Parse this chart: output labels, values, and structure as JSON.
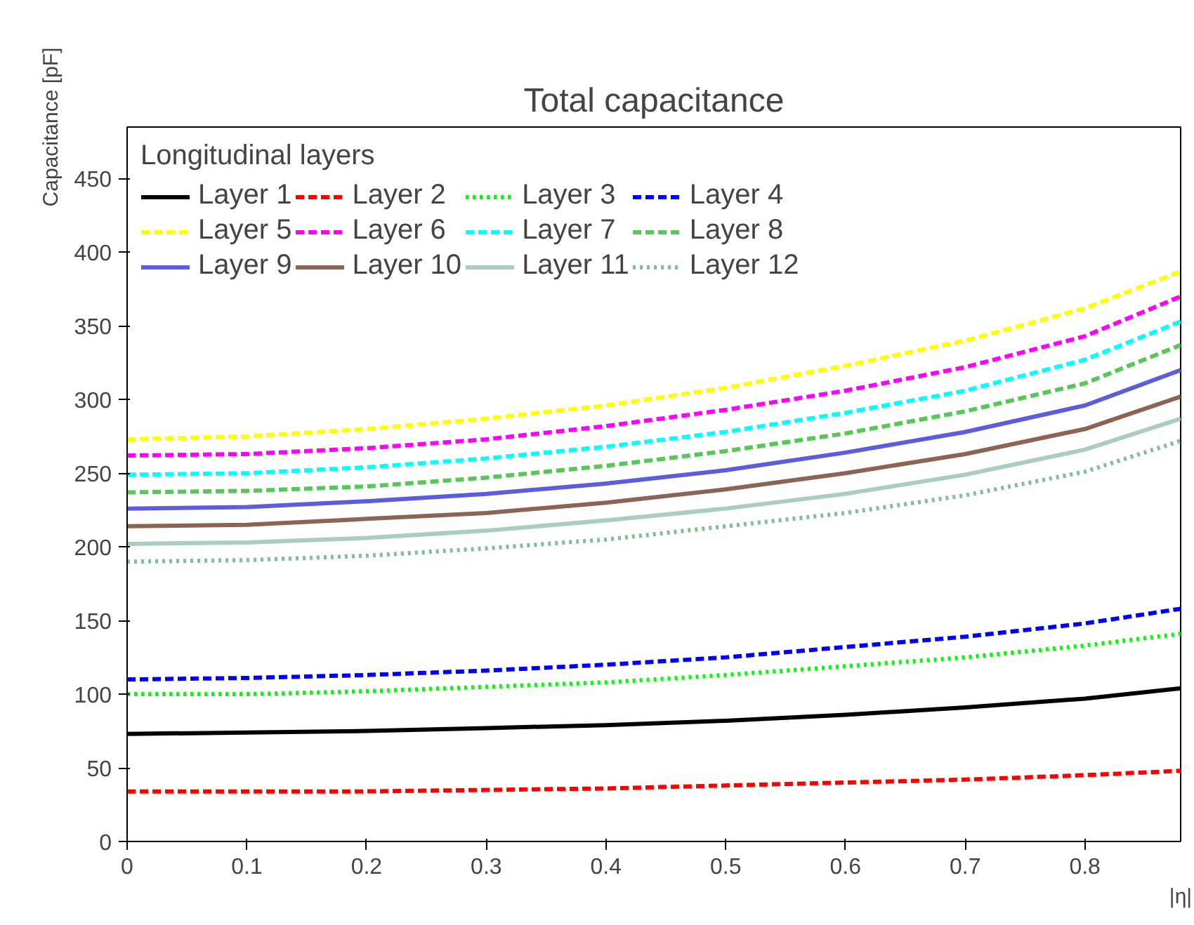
{
  "chart_data": {
    "type": "line",
    "title": "Total capacitance",
    "xlabel": "|η|",
    "ylabel": "Capacitance [pF]",
    "legend_title": "Longitudinal layers",
    "legend": "top left",
    "grid": false,
    "x": [
      0,
      0.1,
      0.2,
      0.3,
      0.4,
      0.5,
      0.6,
      0.7,
      0.8,
      0.88
    ],
    "xlim": [
      0,
      0.88
    ],
    "ylim": [
      0,
      485
    ],
    "xticks": [
      0,
      0.1,
      0.2,
      0.3,
      0.4,
      0.5,
      0.6,
      0.7,
      0.8
    ],
    "yticks": [
      0,
      50,
      100,
      150,
      200,
      250,
      300,
      350,
      400,
      450
    ],
    "series": [
      {
        "name": "Layer 1",
        "color": "#000000",
        "line_style": "solid",
        "values": [
          73,
          74,
          75,
          77,
          79,
          82,
          86,
          91,
          97,
          104
        ]
      },
      {
        "name": "Layer 2",
        "color": "#ff0000",
        "line_style": "dashed",
        "values": [
          34,
          34,
          34,
          35,
          36,
          38,
          40,
          42,
          45,
          48
        ]
      },
      {
        "name": "Layer 3",
        "color": "#00ff00",
        "line_style": "dotted",
        "values": [
          100,
          100,
          102,
          105,
          108,
          113,
          119,
          125,
          133,
          141
        ]
      },
      {
        "name": "Layer 4",
        "color": "#0000ff",
        "line_style": "dashed",
        "values": [
          110,
          111,
          113,
          116,
          120,
          125,
          132,
          139,
          148,
          158
        ]
      },
      {
        "name": "Layer 5",
        "color": "#ffff00",
        "line_style": "dashed",
        "values": [
          273,
          275,
          280,
          287,
          296,
          308,
          323,
          340,
          362,
          387
        ]
      },
      {
        "name": "Layer 6",
        "color": "#ff00ff",
        "line_style": "dashed",
        "values": [
          262,
          263,
          267,
          273,
          282,
          293,
          306,
          322,
          343,
          370
        ]
      },
      {
        "name": "Layer 7",
        "color": "#00ffff",
        "line_style": "dashed",
        "values": [
          249,
          250,
          254,
          260,
          268,
          278,
          291,
          306,
          327,
          353
        ]
      },
      {
        "name": "Layer 8",
        "color": "#55c855",
        "line_style": "dashed",
        "values": [
          237,
          238,
          241,
          247,
          255,
          265,
          277,
          292,
          311,
          337
        ]
      },
      {
        "name": "Layer 9",
        "color": "#5c5cdf",
        "line_style": "solid",
        "values": [
          226,
          227,
          231,
          236,
          243,
          252,
          264,
          278,
          296,
          320
        ]
      },
      {
        "name": "Layer 10",
        "color": "#8b6453",
        "line_style": "solid",
        "values": [
          214,
          215,
          219,
          223,
          230,
          239,
          250,
          263,
          280,
          302
        ]
      },
      {
        "name": "Layer 11",
        "color": "#aacdc0",
        "line_style": "solid",
        "values": [
          202,
          203,
          206,
          211,
          218,
          226,
          236,
          249,
          266,
          287
        ]
      },
      {
        "name": "Layer 12",
        "color": "#7fc09a",
        "line_style": "dotted",
        "values": [
          190,
          191,
          194,
          199,
          205,
          214,
          223,
          235,
          251,
          272
        ]
      }
    ]
  }
}
